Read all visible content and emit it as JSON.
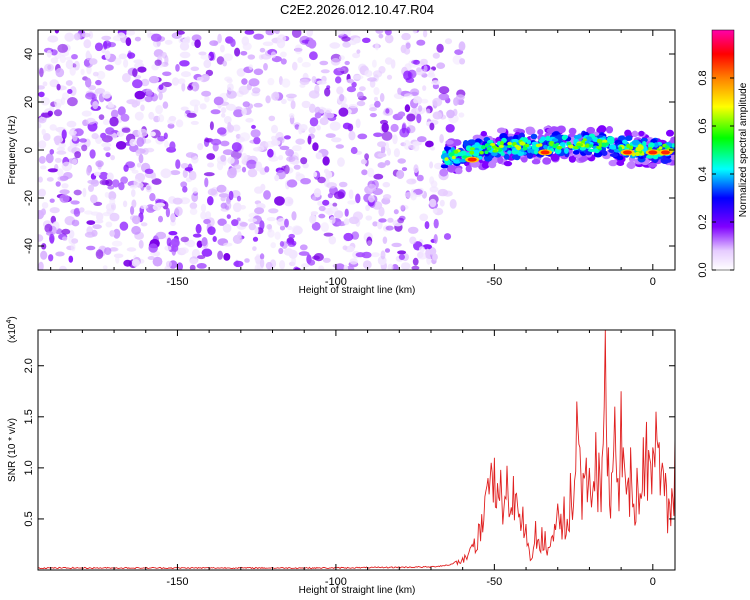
{
  "title": "C2E2.2026.012.10.47.R04",
  "chart_data": [
    {
      "type": "heatmap",
      "name": "spectrogram",
      "xlabel": "Height of straight line (km)",
      "ylabel": "Frequency (Hz)",
      "xlim": [
        -194,
        7
      ],
      "ylim": [
        -50,
        50
      ],
      "xticks": [
        -150,
        -100,
        -50,
        0
      ],
      "yticks": [
        -40,
        -20,
        0,
        20,
        40
      ],
      "noise_region_x": [
        -194,
        -68
      ],
      "signal_band": {
        "x_start": -68,
        "x_end": 7,
        "center_frequency": [
          {
            "x": -68,
            "y": -4
          },
          {
            "x": -50,
            "y": 1
          },
          {
            "x": -35,
            "y": 2
          },
          {
            "x": -20,
            "y": 3
          },
          {
            "x": -5,
            "y": 0
          },
          {
            "x": 5,
            "y": 0
          }
        ],
        "peak_points": [
          {
            "x": -57,
            "y": -4,
            "v": 0.9
          },
          {
            "x": -34,
            "y": -1,
            "v": 0.85
          },
          {
            "x": -8,
            "y": -1,
            "v": 0.85
          },
          {
            "x": 0,
            "y": -1,
            "v": 0.95
          },
          {
            "x": 4,
            "y": -1,
            "v": 0.95
          }
        ]
      },
      "colorbar": {
        "label": "Normalized spectral amplitude",
        "range": [
          0,
          1
        ],
        "ticks": [
          0.0,
          0.2,
          0.4,
          0.6,
          0.8
        ],
        "tick_labels": [
          "0.0",
          "0.2",
          "0.4",
          "0.6",
          "0.8"
        ],
        "colors": [
          "#ffffff",
          "#e6ccff",
          "#8000ff",
          "#0000ff",
          "#00ffff",
          "#00ff00",
          "#ffff00",
          "#ff8000",
          "#ff0000",
          "#ff00aa"
        ]
      }
    },
    {
      "type": "line",
      "name": "snr",
      "xlabel": "Height of straight line (km)",
      "ylabel": "SNR (10 * v/v)",
      "scale_label": "(x10",
      "scale_exponent": "4",
      "scale_close": ")",
      "xlim": [
        -194,
        7
      ],
      "ylim": [
        0,
        2.35
      ],
      "xticks": [
        -150,
        -100,
        -50,
        0
      ],
      "yticks": [
        0.5,
        1.0,
        1.5,
        2.0
      ],
      "ytick_labels": [
        "0.5",
        "1.0",
        "1.5",
        "2.0"
      ],
      "color": "#e02020",
      "series": [
        {
          "name": "SNR",
          "x": [
            -194,
            -100,
            -70,
            -64,
            -60,
            -57,
            -55,
            -53,
            -52,
            -51,
            -50,
            -49,
            -48,
            -47,
            -46,
            -45,
            -44,
            -43,
            -42,
            -41,
            -40,
            -39,
            -38,
            -37,
            -36,
            -35,
            -34,
            -33,
            -32,
            -31,
            -30,
            -29,
            -28,
            -27,
            -26,
            -25,
            -24,
            -23,
            -22,
            -21,
            -20,
            -19,
            -18,
            -17,
            -16,
            -15,
            -14,
            -13,
            -12,
            -11,
            -10,
            -9,
            -8,
            -7,
            -6,
            -5,
            -4,
            -3,
            -2,
            -1,
            0,
            1,
            2,
            3,
            4,
            5,
            6,
            7
          ],
          "y": [
            0.02,
            0.02,
            0.03,
            0.05,
            0.12,
            0.25,
            0.45,
            0.72,
            0.9,
            1.05,
            1.1,
            0.85,
            0.98,
            0.6,
            1.02,
            0.55,
            0.92,
            0.75,
            0.55,
            0.62,
            0.45,
            0.2,
            0.12,
            0.48,
            0.3,
            0.42,
            0.38,
            0.22,
            0.32,
            0.45,
            0.65,
            0.55,
            0.72,
            0.5,
            0.95,
            0.65,
            1.65,
            1.2,
            0.95,
            1.1,
            1.0,
            0.75,
            1.35,
            1.15,
            1.1,
            2.35,
            1.2,
            0.95,
            1.6,
            0.9,
            1.75,
            1.05,
            0.85,
            1.2,
            0.65,
            1.0,
            0.75,
            1.3,
            1.45,
            1.1,
            1.2,
            1.55,
            1.25,
            1.05,
            0.95,
            0.7,
            0.8,
            1.3
          ]
        }
      ]
    }
  ]
}
